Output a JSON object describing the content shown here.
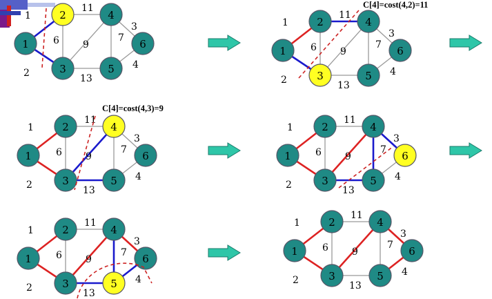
{
  "colors": {
    "node_fill": "#1f8a85",
    "node_current": "#ffff22",
    "edge_tree": "#dd2222",
    "edge_candidate": "#1a1acc",
    "edge_plain": "#999999",
    "arrow": "#2ec6a8",
    "cut_line": "#cc2222"
  },
  "graph": {
    "nodes": [
      "1",
      "2",
      "3",
      "4",
      "5",
      "6"
    ],
    "edges": [
      {
        "from": "1",
        "to": "2",
        "weight": "1"
      },
      {
        "from": "1",
        "to": "3",
        "weight": "2"
      },
      {
        "from": "2",
        "to": "4",
        "weight": "11"
      },
      {
        "from": "2",
        "to": "3",
        "weight": "6"
      },
      {
        "from": "3",
        "to": "4",
        "weight": "9"
      },
      {
        "from": "3",
        "to": "5",
        "weight": "13"
      },
      {
        "from": "4",
        "to": "5",
        "weight": "7"
      },
      {
        "from": "4",
        "to": "6",
        "weight": "3"
      },
      {
        "from": "5",
        "to": "6",
        "weight": "4"
      }
    ]
  },
  "steps": [
    {
      "current": "2",
      "tree": [],
      "candidate": [
        "1-2",
        "1-3"
      ],
      "caption": ""
    },
    {
      "current": "3",
      "tree": [
        "1-2"
      ],
      "candidate": [
        "2-4",
        "1-3"
      ],
      "caption": "C[4]=cost(4,2)=11"
    },
    {
      "current": "4",
      "tree": [
        "1-2",
        "1-3"
      ],
      "candidate": [
        "3-4",
        "3-5"
      ],
      "caption": "C[4]=cost(4,3)=9"
    },
    {
      "current": "6",
      "tree": [
        "1-2",
        "1-3",
        "3-4"
      ],
      "candidate": [
        "4-5",
        "4-6",
        "3-5"
      ],
      "caption": ""
    },
    {
      "current": "5",
      "tree": [
        "1-2",
        "1-3",
        "3-4",
        "4-6"
      ],
      "candidate": [
        "4-5",
        "5-6",
        "3-5"
      ],
      "caption": ""
    },
    {
      "current": "",
      "tree": [
        "1-2",
        "1-3",
        "3-4",
        "4-6",
        "5-6"
      ],
      "candidate": [],
      "caption": ""
    }
  ]
}
